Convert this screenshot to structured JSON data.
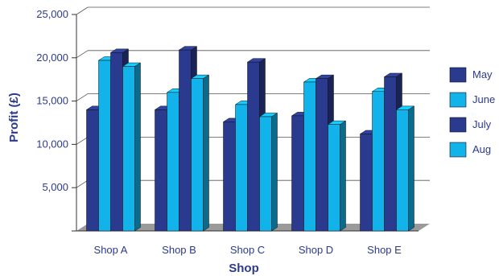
{
  "chart_data": {
    "type": "bar",
    "categories": [
      "Shop A",
      "Shop B",
      "Shop C",
      "Shop D",
      "Shop E"
    ],
    "series": [
      {
        "name": "May",
        "color": "#2a3a8e",
        "values": [
          14000,
          14000,
          12600,
          13300,
          11200
        ]
      },
      {
        "name": "June",
        "color": "#12b2ea",
        "values": [
          19700,
          16000,
          14600,
          17200,
          16100
        ]
      },
      {
        "name": "July",
        "color": "#2a3a8e",
        "values": [
          20600,
          20900,
          19500,
          17600,
          17800
        ]
      },
      {
        "name": "Aug",
        "color": "#12b2ea",
        "values": [
          19000,
          17600,
          13200,
          12300,
          14000
        ]
      }
    ],
    "xlabel": "Shop",
    "ylabel": "Profit (£)",
    "ylim": [
      0,
      25000
    ],
    "yticks": [
      0,
      5000,
      10000,
      15000,
      20000,
      25000
    ],
    "ytick_labels": [
      "",
      "5,000",
      "10,000",
      "15,000",
      "20,000",
      "25,000"
    ],
    "grid": true,
    "legend_position": "right",
    "style": "3d-column"
  }
}
